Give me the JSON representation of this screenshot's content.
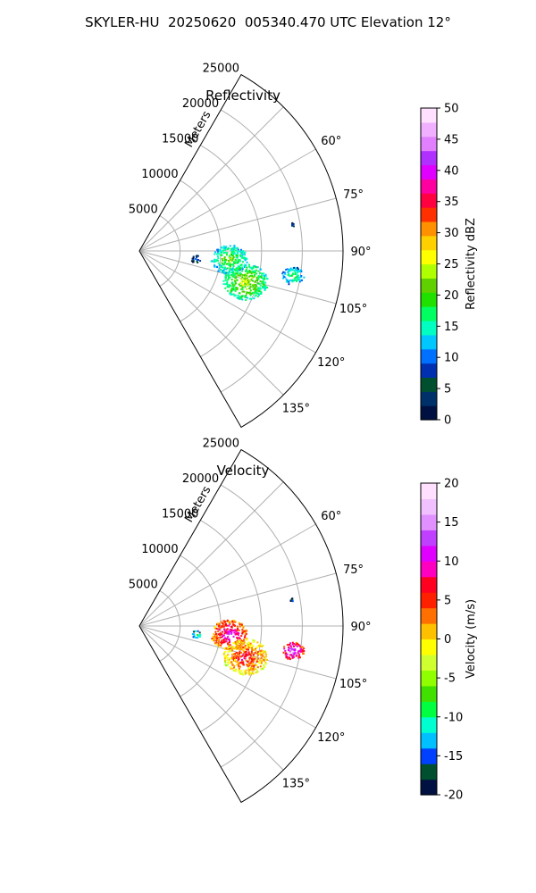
{
  "figure_title": "SKYLER-HU  20250620  005340.470 UTC Elevation 12°",
  "chart_data": [
    {
      "type": "polar-sector",
      "title": "Reflectivity",
      "range_label": "Meters",
      "range_ticks": [
        5000,
        10000,
        15000,
        20000,
        25000
      ],
      "range_max": 25000,
      "azimuth_range_deg": [
        30,
        150
      ],
      "azimuth_gridlines_deg": [
        45,
        60,
        75,
        90,
        105,
        120,
        135
      ],
      "azimuth_tick_labels": [
        "60°",
        "75°",
        "90°",
        "105°",
        "120°",
        "135°"
      ],
      "grid": true,
      "colorbar": {
        "label": "Reflectivity dBZ",
        "min": 0,
        "max": 50,
        "ticks": [
          "0",
          "5",
          "10",
          "15",
          "20",
          "25",
          "30",
          "35",
          "40",
          "45",
          "50"
        ],
        "stops": [
          "#001040",
          "#00306a",
          "#005030",
          "#0030b0",
          "#0070ff",
          "#00c8ff",
          "#00ffc0",
          "#00ff60",
          "#20e000",
          "#60d000",
          "#b0ff00",
          "#ffff00",
          "#ffd000",
          "#ff9000",
          "#ff3000",
          "#ff0040",
          "#ff00a0",
          "#e000ff",
          "#b030ff",
          "#e080ff",
          "#f0b0ff",
          "#ffe0ff"
        ]
      },
      "echoes": [
        {
          "az": 95,
          "range": 11000,
          "size": 1800,
          "value": 22
        },
        {
          "az": 106,
          "range": 13500,
          "size": 2200,
          "value": 25
        },
        {
          "az": 99,
          "range": 19000,
          "size": 1100,
          "value": 20
        },
        {
          "az": 98,
          "range": 7000,
          "size": 500,
          "value": 12
        },
        {
          "az": 80,
          "range": 19000,
          "size": 200,
          "value": 12
        }
      ]
    },
    {
      "type": "polar-sector",
      "title": "Velocity",
      "range_label": "Meters",
      "range_ticks": [
        5000,
        10000,
        15000,
        20000,
        25000
      ],
      "range_max": 25000,
      "azimuth_range_deg": [
        30,
        150
      ],
      "azimuth_gridlines_deg": [
        45,
        60,
        75,
        90,
        105,
        120,
        135
      ],
      "azimuth_tick_labels": [
        "60°",
        "75°",
        "90°",
        "105°",
        "120°",
        "135°"
      ],
      "grid": true,
      "colorbar": {
        "label": "Velocity (m/s)",
        "min": -20,
        "max": 20,
        "ticks": [
          "-20",
          "-15",
          "-10",
          "-5",
          "0",
          "5",
          "10",
          "15",
          "20"
        ],
        "stops": [
          "#001040",
          "#005030",
          "#0040ff",
          "#00c0ff",
          "#00ffd0",
          "#00ff40",
          "#40e000",
          "#90ff00",
          "#d0ff30",
          "#ffff00",
          "#ffc000",
          "#ff7000",
          "#ff2000",
          "#ff0020",
          "#ff00c0",
          "#e000ff",
          "#c040ff",
          "#e090ff",
          "#f0c0ff",
          "#ffe0ff"
        ]
      },
      "echoes": [
        {
          "az": 95,
          "range": 11000,
          "size": 1800,
          "value": 12
        },
        {
          "az": 106,
          "range": 13500,
          "size": 2200,
          "value": 8
        },
        {
          "az": 99,
          "range": 19000,
          "size": 1100,
          "value": 15
        },
        {
          "az": 98,
          "range": 7000,
          "size": 500,
          "value": -5
        },
        {
          "az": 80,
          "range": 19000,
          "size": 200,
          "value": -10
        }
      ]
    }
  ]
}
